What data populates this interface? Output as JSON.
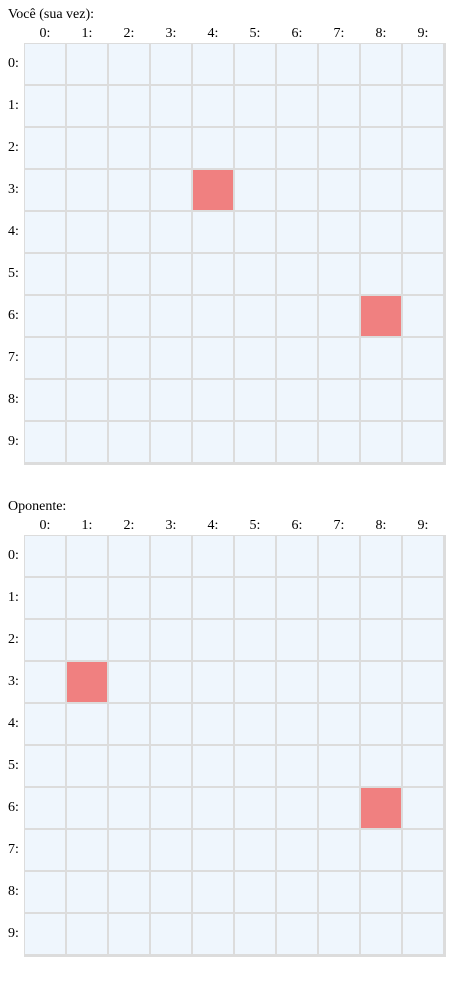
{
  "boards": [
    {
      "id": "player",
      "title": "Você (sua vez):",
      "column_labels": [
        "0:",
        "1:",
        "2:",
        "3:",
        "4:",
        "5:",
        "6:",
        "7:",
        "8:",
        "9:"
      ],
      "row_labels": [
        "0:",
        "1:",
        "2:",
        "3:",
        "4:",
        "5:",
        "6:",
        "7:",
        "8:",
        "9:"
      ],
      "marked_cells": [
        {
          "row": 3,
          "col": 4
        },
        {
          "row": 6,
          "col": 8
        }
      ]
    },
    {
      "id": "opponent",
      "title": "Oponente:",
      "column_labels": [
        "0:",
        "1:",
        "2:",
        "3:",
        "4:",
        "5:",
        "6:",
        "7:",
        "8:",
        "9:"
      ],
      "row_labels": [
        "0:",
        "1:",
        "2:",
        "3:",
        "4:",
        "5:",
        "6:",
        "7:",
        "8:",
        "9:"
      ],
      "marked_cells": [
        {
          "row": 3,
          "col": 1
        },
        {
          "row": 6,
          "col": 8
        }
      ]
    }
  ],
  "colors": {
    "cell_empty": "#eff6fd",
    "cell_marked": "#f08080",
    "grid_line": "#dcdcdc"
  }
}
